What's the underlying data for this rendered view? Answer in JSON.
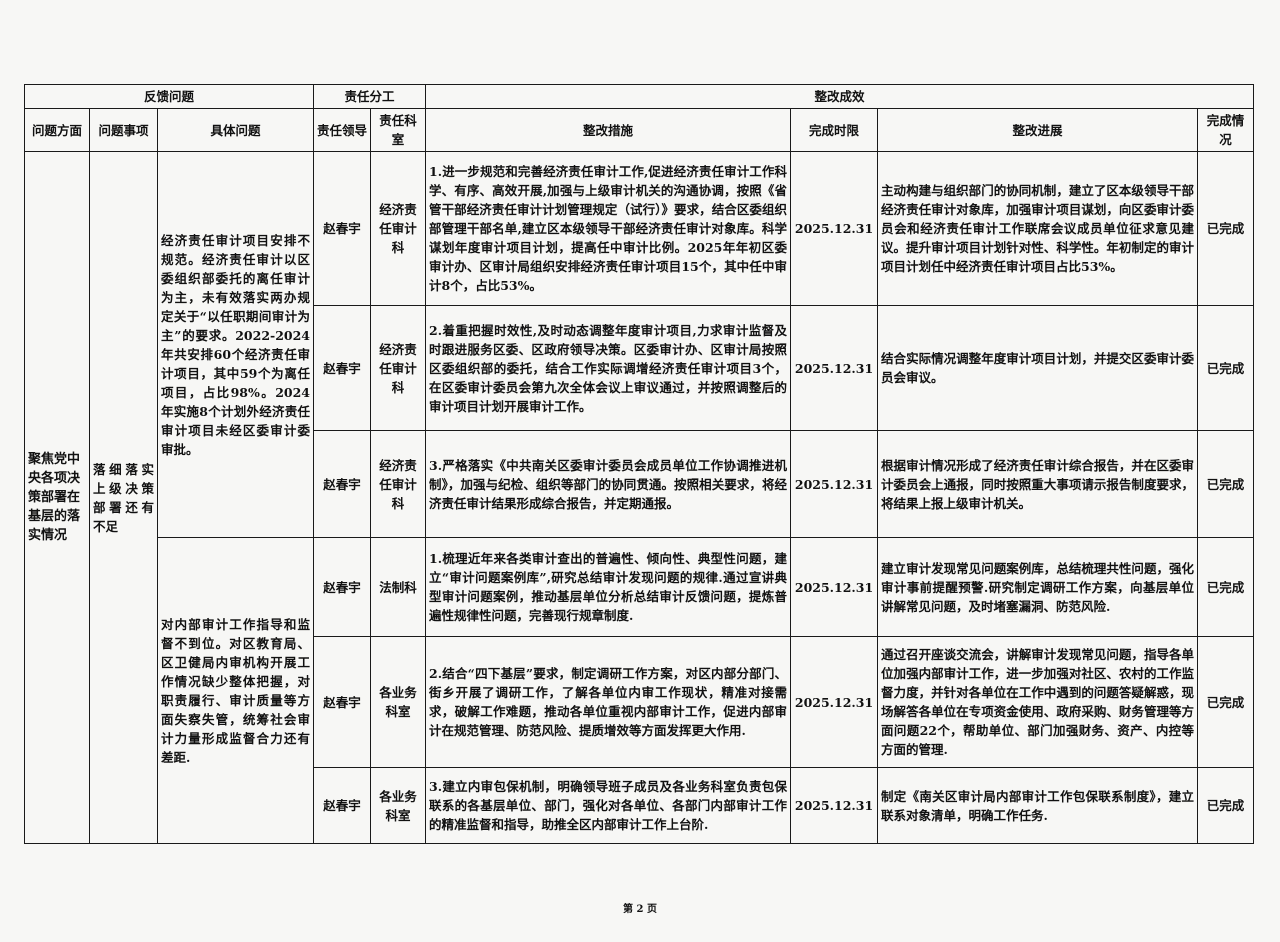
{
  "header_groups": {
    "feedback": "反馈问题",
    "responsibility": "责任分工",
    "rectification": "整改成效"
  },
  "columns": [
    "问题方面",
    "问题事项",
    "具体问题",
    "责任领导",
    "责任科室",
    "整改措施",
    "完成时限",
    "整改进展",
    "完成情况"
  ],
  "aspect": "聚焦党中央各项决策部署在基层的落实情况",
  "item": "落细落实上级决策部署还有不足",
  "problems": [
    {
      "text": "经济责任审计项目安排不规范。经济责任审计以区委组织部委托的离任审计为主，未有效落实两办规定关于“以任职期间审计为主”的要求。2022-2024年共安排60个经济责任审计项目，其中59个为离任项目，占比98%。2024年实施8个计划外经济责任审计项目未经区委审计委审批。",
      "measures": [
        {
          "leader": "赵春宇",
          "dept": "经济责任审计科",
          "measure": "1.进一步规范和完善经济责任审计工作,促进经济责任审计工作科学、有序、高效开展,加强与上级审计机关的沟通协调，按照《省管干部经济责任审计计划管理规定（试行）》要求，结合区委组织部管理干部名单,建立区本级领导干部经济责任审计对象库。科学谋划年度审计项目计划，提高任中审计比例。2025年年初区委审计办、区审计局组织安排经济责任审计项目15个，其中任中审计8个，占比53%。",
          "deadline": "2025.12.31",
          "progress": "主动构建与组织部门的协同机制，建立了区本级领导干部经济责任审计对象库，加强审计项目谋划，向区委审计委员会和经济责任审计工作联席会议成员单位征求意见建议。提升审计项目计划针对性、科学性。年初制定的审计项目计划任中经济责任审计项目占比53%。",
          "status": "已完成"
        },
        {
          "leader": "赵春宇",
          "dept": "经济责任审计科",
          "measure": "2.着重把握时效性,及时动态调整年度审计项目,力求审计监督及时跟进服务区委、区政府领导决策。区委审计办、区审计局按照区委组织部的委托，结合工作实际调增经济责任审计项目3个，在区委审计委员会第九次全体会议上审议通过，并按照调整后的审计项目计划开展审计工作。",
          "deadline": "2025.12.31",
          "progress": "结合实际情况调整年度审计项目计划，并提交区委审计委员会审议。",
          "status": "已完成"
        },
        {
          "leader": "赵春宇",
          "dept": "经济责任审计科",
          "measure": "3.严格落实《中共南关区委审计委员会成员单位工作协调推进机制》，加强与纪检、组织等部门的协同贯通。按照相关要求，将经济责任审计结果形成综合报告，并定期通报。",
          "deadline": "2025.12.31",
          "progress": "根据审计情况形成了经济责任审计综合报告，并在区委审计委员会上通报，同时按照重大事项请示报告制度要求，将结果上报上级审计机关。",
          "status": "已完成"
        }
      ]
    },
    {
      "text": "对内部审计工作指导和监督不到位。对区教育局、区卫健局内审机构开展工作情况缺少整体把握，对职责履行、审计质量等方面失察失管，统筹社会审计力量形成监督合力还有差距.",
      "measures": [
        {
          "leader": "赵春宇",
          "dept": "法制科",
          "measure": "1.梳理近年来各类审计查出的普遍性、倾向性、典型性问题，建立“审计问题案例库”,研究总结审计发现问题的规律.通过宣讲典型审计问题案例，推动基层单位分析总结审计反馈问题，提炼普遍性规律性问题，完善现行规章制度.",
          "deadline": "2025.12.31",
          "progress": "建立审计发现常见问题案例库，总结梳理共性问题，强化审计事前提醒预警.研究制定调研工作方案，向基层单位讲解常见问题，及时堵塞漏洞、防范风险.",
          "status": "已完成"
        },
        {
          "leader": "赵春宇",
          "dept": "各业务科室",
          "measure": "2.结合“四下基层”要求，制定调研工作方案，对区内部分部门、街乡开展了调研工作，了解各单位内审工作现状，精准对接需求，破解工作难题，推动各单位重视内部审计工作，促进内部审计在规范管理、防范风险、提质增效等方面发挥更大作用.",
          "deadline": "2025.12.31",
          "progress": "通过召开座谈交流会，讲解审计发现常见问题，指导各单位加强内部审计工作，进一步加强对社区、农村的工作监督力度，并针对各单位在工作中遇到的问题答疑解惑，现场解答各单位在专项资金使用、政府采购、财务管理等方面问题22个，帮助单位、部门加强财务、资产、内控等方面的管理.",
          "status": "已完成"
        },
        {
          "leader": "赵春宇",
          "dept": "各业务科室",
          "measure": "3.建立内审包保机制，明确领导班子成员及各业务科室负责包保联系的各基层单位、部门，强化对各单位、各部门内部审计工作的精准监督和指导，助推全区内部审计工作上台阶.",
          "deadline": "2025.12.31",
          "progress": "制定《南关区审计局内部审计工作包保联系制度》，建立联系对象清单，明确工作任务.",
          "status": "已完成"
        }
      ]
    }
  ],
  "footer": "第 2 页"
}
